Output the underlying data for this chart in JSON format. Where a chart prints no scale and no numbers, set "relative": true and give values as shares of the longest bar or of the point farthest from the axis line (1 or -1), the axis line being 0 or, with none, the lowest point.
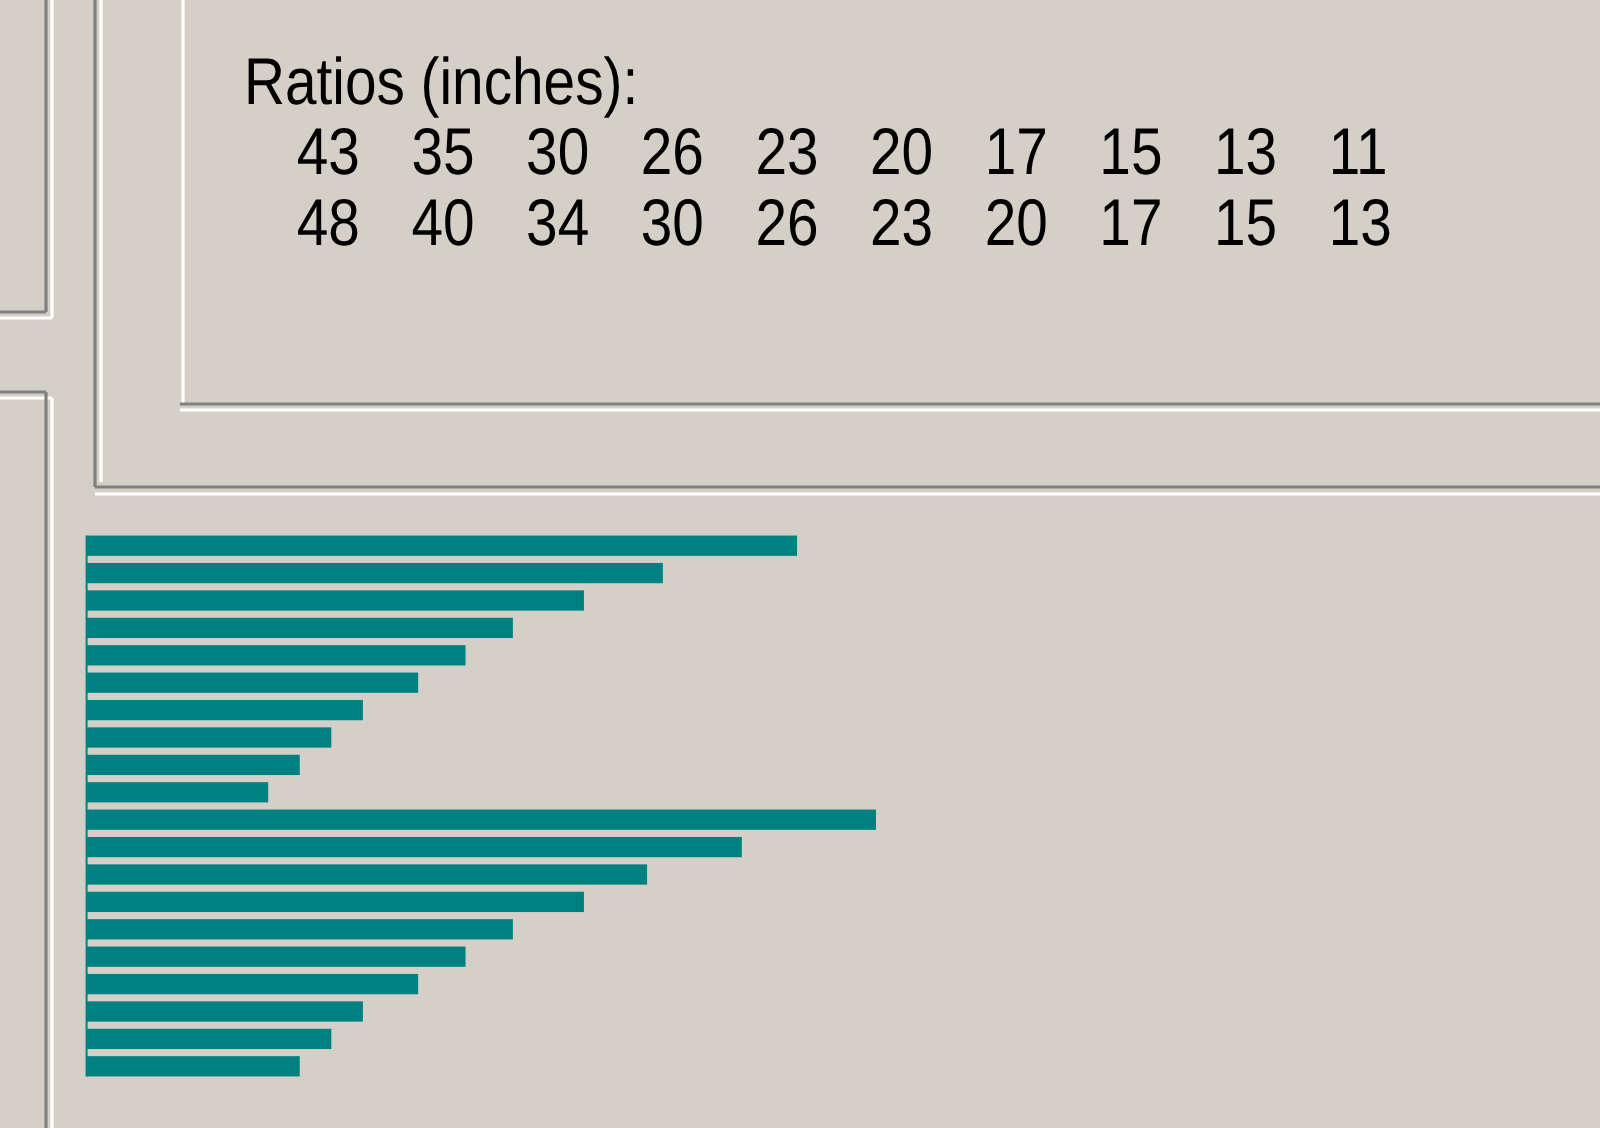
{
  "chart_data": {
    "type": "bar",
    "orientation": "horizontal",
    "relative": true,
    "title": "Ratios (inches):",
    "annotations": [
      "43 35 30 26 23 20 17 15 13 11",
      "48 40 34 30 26 23 20 17 15 13"
    ],
    "categories": [
      null,
      null,
      null,
      null,
      null,
      null,
      null,
      null,
      null,
      null,
      null,
      null,
      null,
      null,
      null,
      null,
      null,
      null,
      null,
      null
    ],
    "values": [
      0.9,
      0.73,
      0.63,
      0.54,
      0.48,
      0.42,
      0.35,
      0.31,
      0.27,
      0.23,
      1,
      0.83,
      0.71,
      0.63,
      0.54,
      0.48,
      0.42,
      0.35,
      0.31,
      0.27
    ],
    "color": "#008080"
  }
}
